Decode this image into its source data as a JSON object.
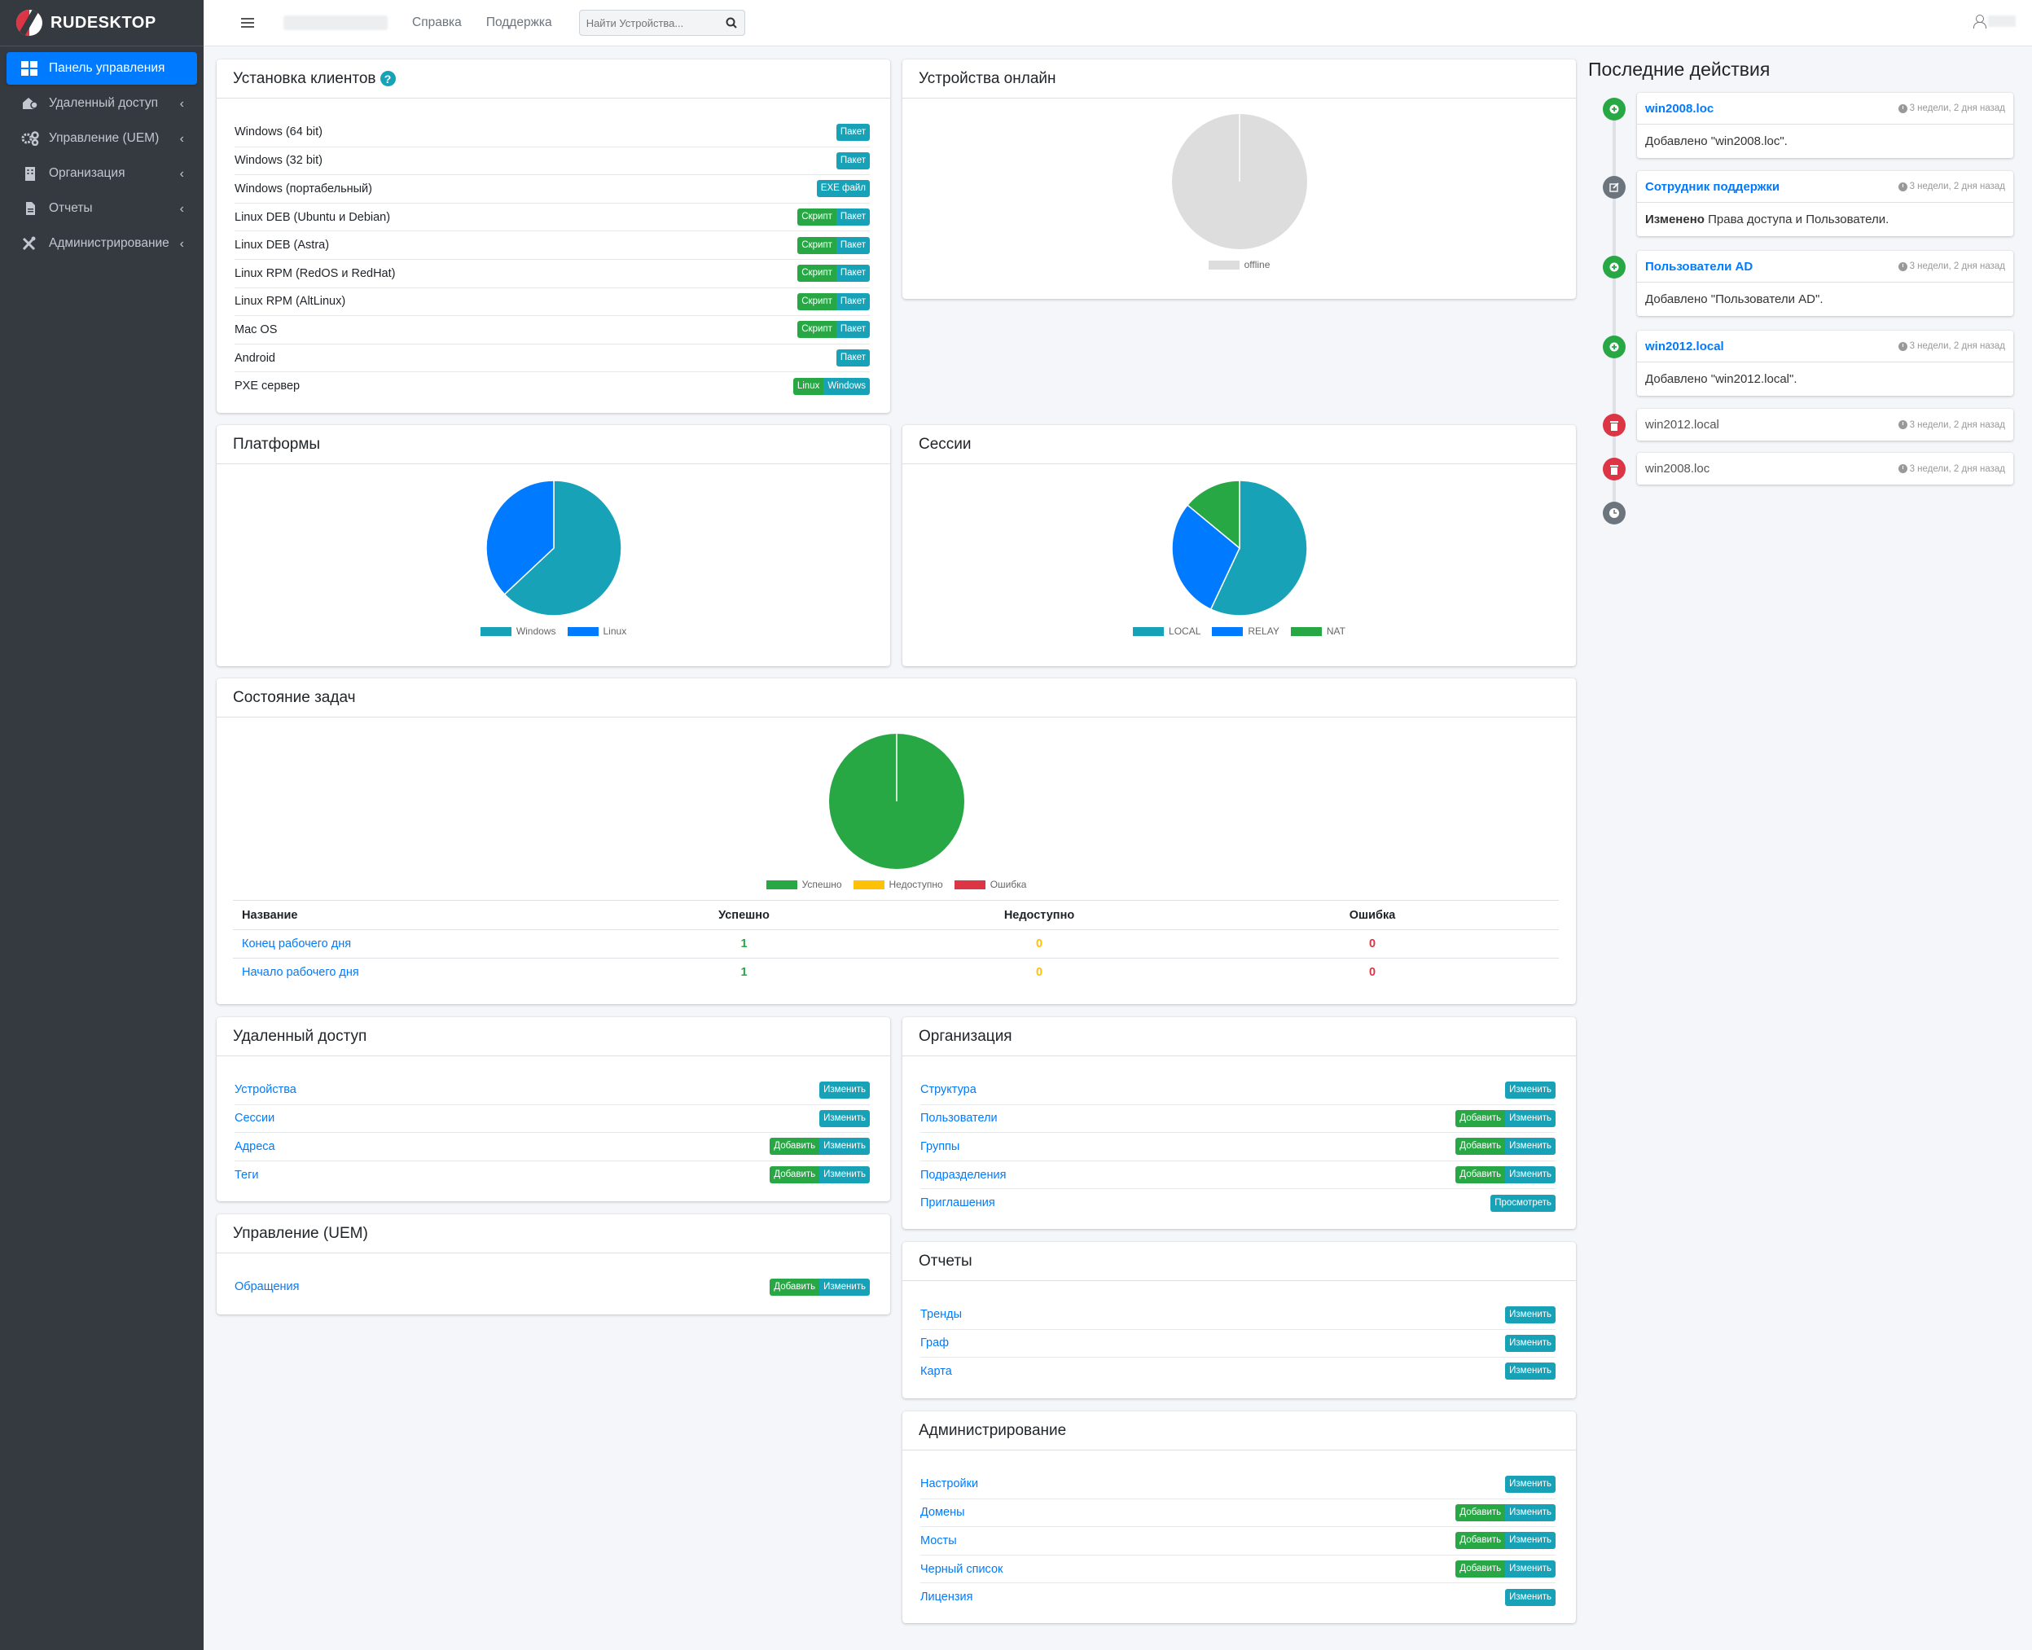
{
  "brand": "RUDESKTOP",
  "sidebar": {
    "items": [
      {
        "label": "Панель управления",
        "icon": "dashboard-icon",
        "active": true
      },
      {
        "label": "Удаленный доступ",
        "icon": "remote-access-icon"
      },
      {
        "label": "Управление (UEM)",
        "icon": "cogs-icon"
      },
      {
        "label": "Организация",
        "icon": "building-icon"
      },
      {
        "label": "Отчеты",
        "icon": "file-icon"
      },
      {
        "label": "Администрирование",
        "icon": "tools-icon"
      }
    ]
  },
  "topbar": {
    "help": "Справка",
    "support": "Поддержка",
    "search_placeholder": "Найти Устройства..."
  },
  "clients": {
    "title": "Установка клиентов",
    "rows": [
      {
        "name": "Windows (64 bit)",
        "buttons": [
          {
            "label": "Пакет",
            "kind": "info"
          }
        ]
      },
      {
        "name": "Windows (32 bit)",
        "buttons": [
          {
            "label": "Пакет",
            "kind": "info"
          }
        ]
      },
      {
        "name": "Windows (портабельный)",
        "buttons": [
          {
            "label": "EXE файл",
            "kind": "info"
          }
        ]
      },
      {
        "name": "Linux DEB (Ubuntu и Debian)",
        "buttons": [
          {
            "label": "Скрипт",
            "kind": "success"
          },
          {
            "label": "Пакет",
            "kind": "info"
          }
        ]
      },
      {
        "name": "Linux DEB (Astra)",
        "buttons": [
          {
            "label": "Скрипт",
            "kind": "success"
          },
          {
            "label": "Пакет",
            "kind": "info"
          }
        ]
      },
      {
        "name": "Linux RPM (RedOS и RedHat)",
        "buttons": [
          {
            "label": "Скрипт",
            "kind": "success"
          },
          {
            "label": "Пакет",
            "kind": "info"
          }
        ]
      },
      {
        "name": "Linux RPM (AltLinux)",
        "buttons": [
          {
            "label": "Скрипт",
            "kind": "success"
          },
          {
            "label": "Пакет",
            "kind": "info"
          }
        ]
      },
      {
        "name": "Mac OS",
        "buttons": [
          {
            "label": "Скрипт",
            "kind": "success"
          },
          {
            "label": "Пакет",
            "kind": "info"
          }
        ]
      },
      {
        "name": "Android",
        "buttons": [
          {
            "label": "Пакет",
            "kind": "info"
          }
        ]
      },
      {
        "name": "PXE сервер",
        "buttons": [
          {
            "label": "Linux",
            "kind": "success"
          },
          {
            "label": "Windows",
            "kind": "info"
          }
        ]
      }
    ]
  },
  "online": {
    "title": "Устройства онлайн"
  },
  "platforms": {
    "title": "Платформы"
  },
  "sessions": {
    "title": "Сессии"
  },
  "tasks": {
    "title": "Состояние задач",
    "columns": [
      "Название",
      "Успешно",
      "Недоступно",
      "Ошибка"
    ],
    "rows": [
      {
        "name": "Конец рабочего дня",
        "ok": "1",
        "na": "0",
        "err": "0"
      },
      {
        "name": "Начало рабочего дня",
        "ok": "1",
        "na": "0",
        "err": "0"
      }
    ]
  },
  "chart_data": [
    {
      "type": "pie",
      "labels": [
        "offline"
      ],
      "values": [
        1
      ],
      "colors": [
        "#dddddd"
      ]
    },
    {
      "type": "pie",
      "labels": [
        "Windows",
        "Linux"
      ],
      "values": [
        63,
        37
      ],
      "colors": [
        "#17a2b8",
        "#007bff"
      ]
    },
    {
      "type": "pie",
      "labels": [
        "LOCAL",
        "RELAY",
        "NAT"
      ],
      "values": [
        57,
        29,
        14
      ],
      "colors": [
        "#17a2b8",
        "#007bff",
        "#28a745"
      ]
    },
    {
      "type": "pie",
      "labels": [
        "Успешно",
        "Недоступно",
        "Ошибка"
      ],
      "values": [
        100,
        0,
        0
      ],
      "colors": [
        "#28a745",
        "#ffc107",
        "#dc3545"
      ]
    }
  ],
  "remote": {
    "title": "Удаленный доступ",
    "rows": [
      {
        "name": "Устройства",
        "buttons": [
          {
            "label": "Изменить",
            "kind": "info"
          }
        ]
      },
      {
        "name": "Сессии",
        "buttons": [
          {
            "label": "Изменить",
            "kind": "info"
          }
        ]
      },
      {
        "name": "Адреса",
        "buttons": [
          {
            "label": "Добавить",
            "kind": "success"
          },
          {
            "label": "Изменить",
            "kind": "info"
          }
        ]
      },
      {
        "name": "Теги",
        "buttons": [
          {
            "label": "Добавить",
            "kind": "success"
          },
          {
            "label": "Изменить",
            "kind": "info"
          }
        ]
      }
    ]
  },
  "uem": {
    "title": "Управление (UEM)",
    "rows": [
      {
        "name": "Обращения",
        "buttons": [
          {
            "label": "Добавить",
            "kind": "success"
          },
          {
            "label": "Изменить",
            "kind": "info"
          }
        ]
      }
    ]
  },
  "org": {
    "title": "Организация",
    "rows": [
      {
        "name": "Структура",
        "buttons": [
          {
            "label": "Изменить",
            "kind": "info"
          }
        ]
      },
      {
        "name": "Пользователи",
        "buttons": [
          {
            "label": "Добавить",
            "kind": "success"
          },
          {
            "label": "Изменить",
            "kind": "info"
          }
        ]
      },
      {
        "name": "Группы",
        "buttons": [
          {
            "label": "Добавить",
            "kind": "success"
          },
          {
            "label": "Изменить",
            "kind": "info"
          }
        ]
      },
      {
        "name": "Подразделения",
        "buttons": [
          {
            "label": "Добавить",
            "kind": "success"
          },
          {
            "label": "Изменить",
            "kind": "info"
          }
        ]
      },
      {
        "name": "Приглашения",
        "buttons": [
          {
            "label": "Просмотреть",
            "kind": "info"
          }
        ]
      }
    ]
  },
  "reports": {
    "title": "Отчеты",
    "rows": [
      {
        "name": "Тренды",
        "buttons": [
          {
            "label": "Изменить",
            "kind": "info"
          }
        ]
      },
      {
        "name": "Граф",
        "buttons": [
          {
            "label": "Изменить",
            "kind": "info"
          }
        ]
      },
      {
        "name": "Карта",
        "buttons": [
          {
            "label": "Изменить",
            "kind": "info"
          }
        ]
      }
    ]
  },
  "admin": {
    "title": "Администрирование",
    "rows": [
      {
        "name": "Настройки",
        "buttons": [
          {
            "label": "Изменить",
            "kind": "info"
          }
        ]
      },
      {
        "name": "Домены",
        "buttons": [
          {
            "label": "Добавить",
            "kind": "success"
          },
          {
            "label": "Изменить",
            "kind": "info"
          }
        ]
      },
      {
        "name": "Мосты",
        "buttons": [
          {
            "label": "Добавить",
            "kind": "success"
          },
          {
            "label": "Изменить",
            "kind": "info"
          }
        ]
      },
      {
        "name": "Черный список",
        "buttons": [
          {
            "label": "Добавить",
            "kind": "success"
          },
          {
            "label": "Изменить",
            "kind": "info"
          }
        ]
      },
      {
        "name": "Лицензия",
        "buttons": [
          {
            "label": "Изменить",
            "kind": "info"
          }
        ]
      }
    ]
  },
  "activity": {
    "title": "Последние действия",
    "items": [
      {
        "title": "win2008.loc",
        "time": "3 недели, 2 дня назад",
        "body": "Добавлено \"win2008.loc\".",
        "icon": "plus-icon",
        "color": "#28a745"
      },
      {
        "title": "Сотрудник поддержки",
        "time": "3 недели, 2 дня назад",
        "body_bold": "Изменено",
        "body": "Права доступа и Пользователи.",
        "icon": "edit-icon",
        "color": "#6c757d"
      },
      {
        "title": "Пользователи AD",
        "time": "3 недели, 2 дня назад",
        "body": "Добавлено \"Пользователи AD\".",
        "icon": "plus-icon",
        "color": "#28a745"
      },
      {
        "title": "win2012.local",
        "time": "3 недели, 2 дня назад",
        "body": "Добавлено \"win2012.local\".",
        "icon": "plus-icon",
        "color": "#28a745"
      },
      {
        "title": "win2012.local",
        "time": "3 недели, 2 дня назад",
        "icon": "trash-icon",
        "color": "#dc3545"
      },
      {
        "title": "win2008.loc",
        "time": "3 недели, 2 дня назад",
        "icon": "trash-icon",
        "color": "#dc3545"
      }
    ]
  }
}
